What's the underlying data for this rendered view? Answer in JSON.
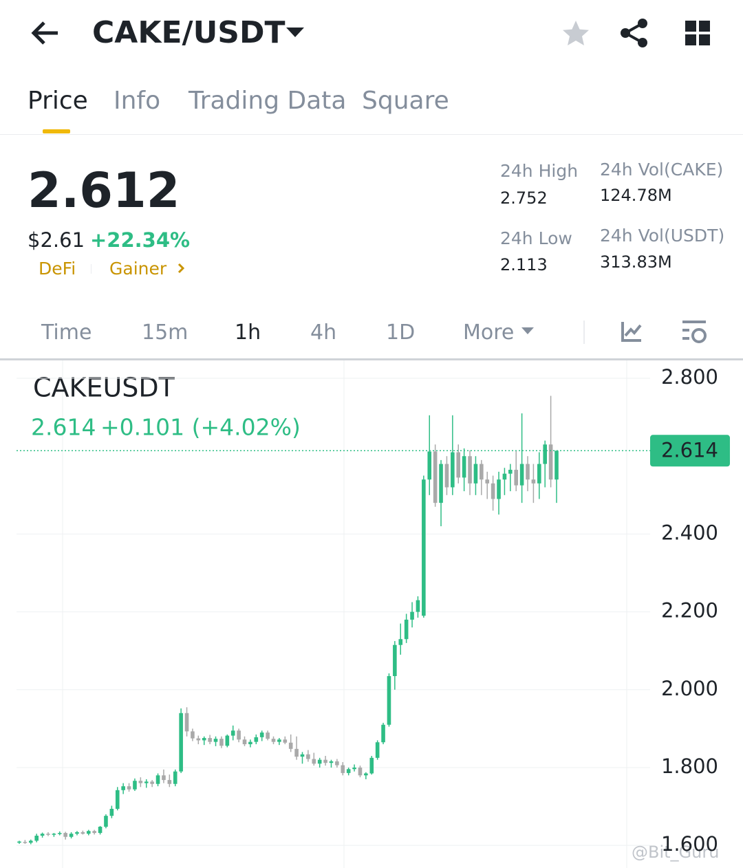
{
  "header": {
    "pair": "CAKE/USDT"
  },
  "tabs": [
    "Price",
    "Info",
    "Trading Data",
    "Square"
  ],
  "price": {
    "last": "2.612",
    "usd": "$2.61",
    "change": "+22.34%",
    "tags": [
      "DeFi",
      "Gainer"
    ]
  },
  "stats": [
    {
      "label": "24h High",
      "value": "2.752"
    },
    {
      "label": "24h Vol(CAKE)",
      "value": "124.78M"
    },
    {
      "label": "24h Low",
      "value": "2.113"
    },
    {
      "label": "24h Vol(USDT)",
      "value": "313.83M"
    }
  ],
  "intervals": [
    "Time",
    "15m",
    "1h",
    "4h",
    "1D",
    "More"
  ],
  "watermark": "@Bit_Guru",
  "chart_data": {
    "type": "candlestick",
    "title": "CAKEUSDT",
    "summary": {
      "close": "2.614",
      "change": "+0.101 (+4.02%)"
    },
    "up_color": "#2ebd85",
    "down_color": "#a9a9a9",
    "grid": true,
    "ylim": [
      1.542,
      2.846
    ],
    "yticks": [
      {
        "value": 1.6,
        "label": "1.600"
      },
      {
        "value": 1.8,
        "label": "1.800"
      },
      {
        "value": 2.0,
        "label": "2.000"
      },
      {
        "value": 2.2,
        "label": "2.200"
      },
      {
        "value": 2.4,
        "label": "2.400"
      },
      {
        "value": 2.8,
        "label": "2.800"
      }
    ],
    "last_price": {
      "value": 2.614,
      "label": "2.614"
    },
    "ohlc": [
      [
        1.607,
        1.612,
        1.604,
        1.61
      ],
      [
        1.609,
        1.614,
        1.604,
        1.608
      ],
      [
        1.607,
        1.615,
        1.603,
        1.612
      ],
      [
        1.612,
        1.63,
        1.608,
        1.625
      ],
      [
        1.625,
        1.633,
        1.62,
        1.63
      ],
      [
        1.63,
        1.634,
        1.624,
        1.628
      ],
      [
        1.628,
        1.632,
        1.622,
        1.63
      ],
      [
        1.63,
        1.636,
        1.626,
        1.632
      ],
      [
        1.632,
        1.635,
        1.615,
        1.622
      ],
      [
        1.622,
        1.634,
        1.618,
        1.63
      ],
      [
        1.63,
        1.637,
        1.626,
        1.634
      ],
      [
        1.634,
        1.638,
        1.628,
        1.63
      ],
      [
        1.63,
        1.64,
        1.626,
        1.637
      ],
      [
        1.637,
        1.64,
        1.628,
        1.632
      ],
      [
        1.632,
        1.65,
        1.628,
        1.648
      ],
      [
        1.648,
        1.68,
        1.644,
        1.676
      ],
      [
        1.676,
        1.702,
        1.67,
        1.694
      ],
      [
        1.694,
        1.75,
        1.69,
        1.742
      ],
      [
        1.742,
        1.76,
        1.732,
        1.752
      ],
      [
        1.752,
        1.76,
        1.738,
        1.744
      ],
      [
        1.744,
        1.772,
        1.74,
        1.766
      ],
      [
        1.766,
        1.775,
        1.75,
        1.76
      ],
      [
        1.76,
        1.77,
        1.748,
        1.764
      ],
      [
        1.764,
        1.768,
        1.75,
        1.758
      ],
      [
        1.758,
        1.785,
        1.752,
        1.78
      ],
      [
        1.78,
        1.795,
        1.76,
        1.768
      ],
      [
        1.768,
        1.782,
        1.75,
        1.758
      ],
      [
        1.758,
        1.795,
        1.752,
        1.79
      ],
      [
        1.79,
        1.952,
        1.786,
        1.94
      ],
      [
        1.94,
        1.955,
        1.88,
        1.893
      ],
      [
        1.893,
        1.9,
        1.868,
        1.875
      ],
      [
        1.875,
        1.882,
        1.86,
        1.87
      ],
      [
        1.87,
        1.88,
        1.858,
        1.876
      ],
      [
        1.876,
        1.884,
        1.86,
        1.866
      ],
      [
        1.866,
        1.88,
        1.855,
        1.874
      ],
      [
        1.874,
        1.88,
        1.85,
        1.856
      ],
      [
        1.856,
        1.885,
        1.852,
        1.882
      ],
      [
        1.882,
        1.908,
        1.87,
        1.895
      ],
      [
        1.895,
        1.9,
        1.865,
        1.872
      ],
      [
        1.872,
        1.88,
        1.855,
        1.86
      ],
      [
        1.86,
        1.872,
        1.852,
        1.866
      ],
      [
        1.866,
        1.885,
        1.86,
        1.878
      ],
      [
        1.878,
        1.895,
        1.868,
        1.89
      ],
      [
        1.89,
        1.895,
        1.87,
        1.874
      ],
      [
        1.874,
        1.88,
        1.86,
        1.866
      ],
      [
        1.866,
        1.876,
        1.858,
        1.872
      ],
      [
        1.872,
        1.88,
        1.86,
        1.864
      ],
      [
        1.864,
        1.885,
        1.84,
        1.848
      ],
      [
        1.848,
        1.88,
        1.82,
        1.828
      ],
      [
        1.828,
        1.84,
        1.81,
        1.834
      ],
      [
        1.834,
        1.845,
        1.815,
        1.822
      ],
      [
        1.822,
        1.838,
        1.805,
        1.81
      ],
      [
        1.81,
        1.825,
        1.8,
        1.82
      ],
      [
        1.82,
        1.83,
        1.805,
        1.812
      ],
      [
        1.812,
        1.82,
        1.8,
        1.816
      ],
      [
        1.816,
        1.822,
        1.8,
        1.806
      ],
      [
        1.806,
        1.814,
        1.78,
        1.786
      ],
      [
        1.786,
        1.8,
        1.78,
        1.796
      ],
      [
        1.796,
        1.808,
        1.79,
        1.8
      ],
      [
        1.8,
        1.805,
        1.775,
        1.78
      ],
      [
        1.78,
        1.788,
        1.77,
        1.785
      ],
      [
        1.785,
        1.83,
        1.782,
        1.825
      ],
      [
        1.825,
        1.87,
        1.82,
        1.865
      ],
      [
        1.865,
        1.915,
        1.86,
        1.91
      ],
      [
        1.91,
        2.042,
        1.905,
        2.035
      ],
      [
        2.035,
        2.125,
        2.0,
        2.115
      ],
      [
        2.115,
        2.17,
        2.09,
        2.13
      ],
      [
        2.13,
        2.195,
        2.12,
        2.18
      ],
      [
        2.18,
        2.225,
        2.16,
        2.2
      ],
      [
        2.2,
        2.24,
        2.185,
        2.23
      ],
      [
        2.19,
        2.55,
        2.185,
        2.54
      ],
      [
        2.54,
        2.705,
        2.5,
        2.612
      ],
      [
        2.612,
        2.63,
        2.47,
        2.48
      ],
      [
        2.48,
        2.59,
        2.42,
        2.58
      ],
      [
        2.58,
        2.6,
        2.5,
        2.52
      ],
      [
        2.52,
        2.705,
        2.5,
        2.61
      ],
      [
        2.61,
        2.63,
        2.53,
        2.545
      ],
      [
        2.545,
        2.62,
        2.51,
        2.6
      ],
      [
        2.6,
        2.615,
        2.5,
        2.53
      ],
      [
        2.53,
        2.6,
        2.5,
        2.58
      ],
      [
        2.58,
        2.59,
        2.5,
        2.54
      ],
      [
        2.54,
        2.56,
        2.49,
        2.53
      ],
      [
        2.53,
        2.55,
        2.46,
        2.49
      ],
      [
        2.49,
        2.56,
        2.45,
        2.54
      ],
      [
        2.54,
        2.57,
        2.5,
        2.555
      ],
      [
        2.555,
        2.58,
        2.51,
        2.565
      ],
      [
        2.565,
        2.615,
        2.51,
        2.525
      ],
      [
        2.525,
        2.71,
        2.48,
        2.58
      ],
      [
        2.58,
        2.6,
        2.51,
        2.54
      ],
      [
        2.54,
        2.58,
        2.48,
        2.53
      ],
      [
        2.53,
        2.61,
        2.49,
        2.58
      ],
      [
        2.58,
        2.64,
        2.52,
        2.63
      ],
      [
        2.63,
        2.755,
        2.52,
        2.54
      ],
      [
        2.54,
        2.614,
        2.48,
        2.614
      ]
    ]
  }
}
